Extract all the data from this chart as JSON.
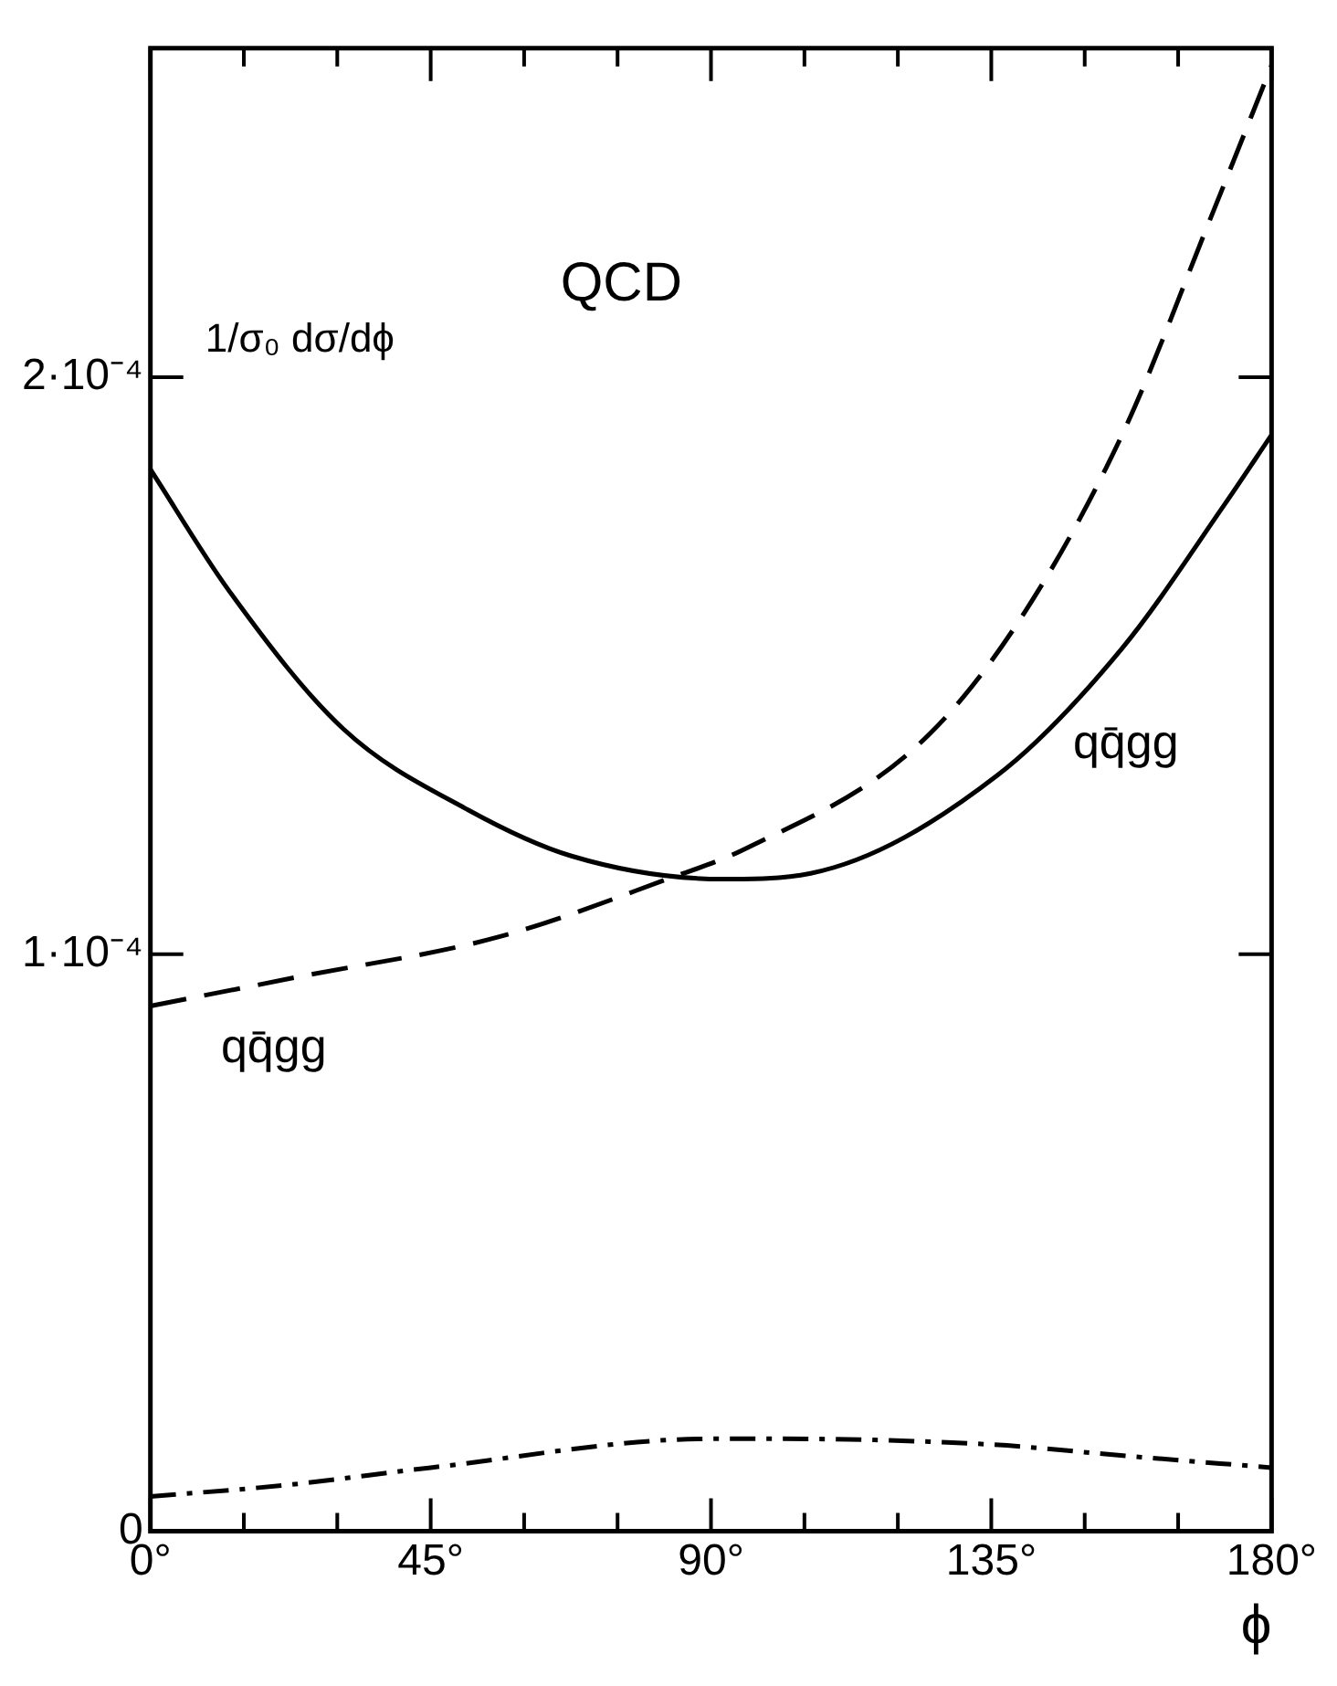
{
  "chart_data": {
    "type": "line",
    "title": "QCD",
    "xlabel": "ϕ",
    "ylabel": "1/σ₀ dσ/dϕ",
    "xlim": [
      0,
      180
    ],
    "ylim": [
      0,
      0.000257
    ],
    "xticks": [
      {
        "value": 0,
        "label": "0°"
      },
      {
        "value": 15,
        "label": null
      },
      {
        "value": 30,
        "label": null
      },
      {
        "value": 45,
        "label": "45°"
      },
      {
        "value": 60,
        "label": null
      },
      {
        "value": 75,
        "label": null
      },
      {
        "value": 90,
        "label": "90°"
      },
      {
        "value": 105,
        "label": null
      },
      {
        "value": 120,
        "label": null
      },
      {
        "value": 135,
        "label": "135°"
      },
      {
        "value": 150,
        "label": null
      },
      {
        "value": 165,
        "label": null
      },
      {
        "value": 180,
        "label": "180°"
      }
    ],
    "yticks": [
      0,
      {
        "value": 0.0001,
        "label": "1·10⁻⁴"
      },
      {
        "value": 0.0002,
        "label": "2·10⁻⁴"
      }
    ],
    "grid": false,
    "legend": false,
    "marker": "none",
    "series": [
      {
        "color": "#000000",
        "line_style": "solid",
        "x": [
          0,
          12.6,
          31,
          51,
          67.6,
          92,
          106,
          136,
          156,
          172.5,
          180
        ],
        "values": [
          0.000184,
          0.000163,
          0.000139,
          0.000125,
          0.000117,
          0.000113,
          0.000114,
          0.000131,
          0.000153,
          0.000178,
          0.00019
        ]
      },
      {
        "color": "#000000",
        "line_style": "dashed",
        "x": [
          0,
          23.5,
          56,
          83,
          95,
          123,
          139,
          156,
          170,
          180
        ],
        "values": [
          9.1e-05,
          9.6e-05,
          0.000103,
          0.000113,
          0.000118,
          0.000136,
          0.000157,
          0.00019,
          0.000227,
          0.000254
        ]
      },
      {
        "color": "#000000",
        "line_style": "dotted",
        "x": [
          0,
          22,
          45,
          90,
          100,
          135,
          157,
          180
        ],
        "values": [
          6e-06,
          8e-06,
          1.1e-05,
          1.6e-05,
          1.6e-05,
          1.5e-05,
          1.3e-05,
          1.1e-05
        ]
      }
    ],
    "annotations": [
      "qq̄gg",
      "qq̄gg"
    ]
  }
}
